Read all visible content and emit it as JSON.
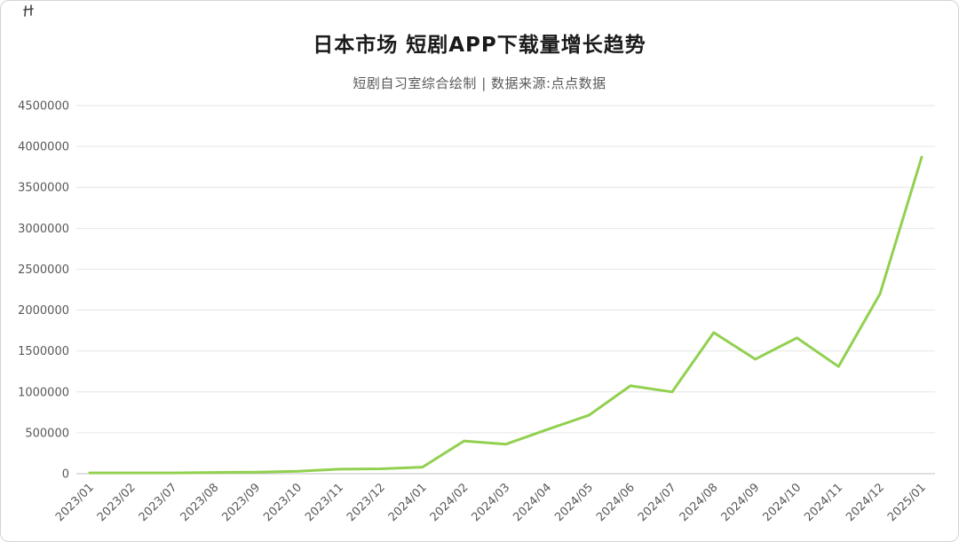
{
  "chart_data": {
    "type": "line",
    "title": "日本市场 短剧APP下载量增长趋势",
    "subtitle": "短剧自习室综合绘制 | 数据来源:点点数据",
    "categories": [
      "2023/01",
      "2023/02",
      "2023/07",
      "2023/08",
      "2023/09",
      "2023/10",
      "2023/11",
      "2023/12",
      "2024/01",
      "2024/02",
      "2024/03",
      "2024/04",
      "2024/05",
      "2024/06",
      "2024/07",
      "2024/08",
      "2024/09",
      "2024/10",
      "2024/11",
      "2024/12",
      "2025/01"
    ],
    "values": [
      10000,
      10000,
      10000,
      15000,
      20000,
      30000,
      55000,
      60000,
      80000,
      400000,
      360000,
      540000,
      715000,
      1075000,
      1000000,
      1725000,
      1400000,
      1660000,
      1310000,
      2200000,
      3870000
    ],
    "xlabel": "",
    "ylabel": "",
    "ylim": [
      0,
      4500000
    ],
    "y_tick_step": 500000,
    "grid": true,
    "legend_position": "none",
    "line_color": "#92D050",
    "gridline_color": "#e6e6e6",
    "axis_line_color": "#bfbfbf",
    "tick_label_color": "#595959"
  },
  "decor": {
    "corner_mark": "corner-mark"
  }
}
